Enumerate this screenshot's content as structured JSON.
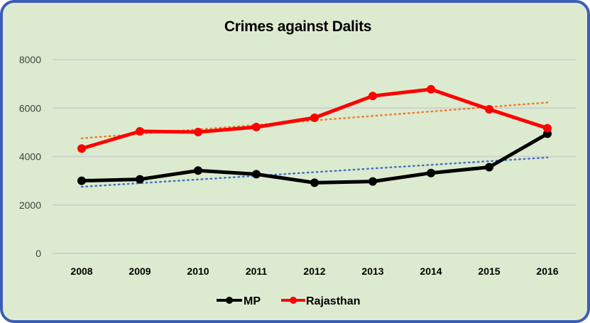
{
  "chart_data": {
    "type": "line",
    "title": "Crimes against Dalits",
    "xlabel": "",
    "ylabel": "",
    "categories": [
      "2008",
      "2009",
      "2010",
      "2011",
      "2012",
      "2013",
      "2014",
      "2015",
      "2016"
    ],
    "series": [
      {
        "name": "MP",
        "color": "#000000",
        "values": [
          3000,
          3060,
          3420,
          3270,
          2920,
          2970,
          3320,
          3560,
          4940
        ]
      },
      {
        "name": "Rajasthan",
        "color": "#ff0000",
        "values": [
          4330,
          5040,
          5010,
          5215,
          5600,
          6500,
          6775,
          5950,
          5170
        ]
      }
    ],
    "trendlines": [
      {
        "series": "MP",
        "type": "linear",
        "style": "dotted",
        "color": "#4472c4",
        "start": 2750,
        "end": 3960
      },
      {
        "series": "Rajasthan",
        "type": "linear",
        "style": "dotted",
        "color": "#ed7d31",
        "start": 4750,
        "end": 6230
      }
    ],
    "ylim": [
      0,
      8000
    ],
    "yticks": [
      0,
      2000,
      4000,
      6000,
      8000
    ],
    "grid": true,
    "legend_position": "bottom"
  },
  "legend": {
    "items": [
      "MP",
      "Rajasthan"
    ]
  },
  "colors": {
    "background": "#dcebd0",
    "border": "#3b5cb8",
    "grid": "#d0d0d0"
  }
}
